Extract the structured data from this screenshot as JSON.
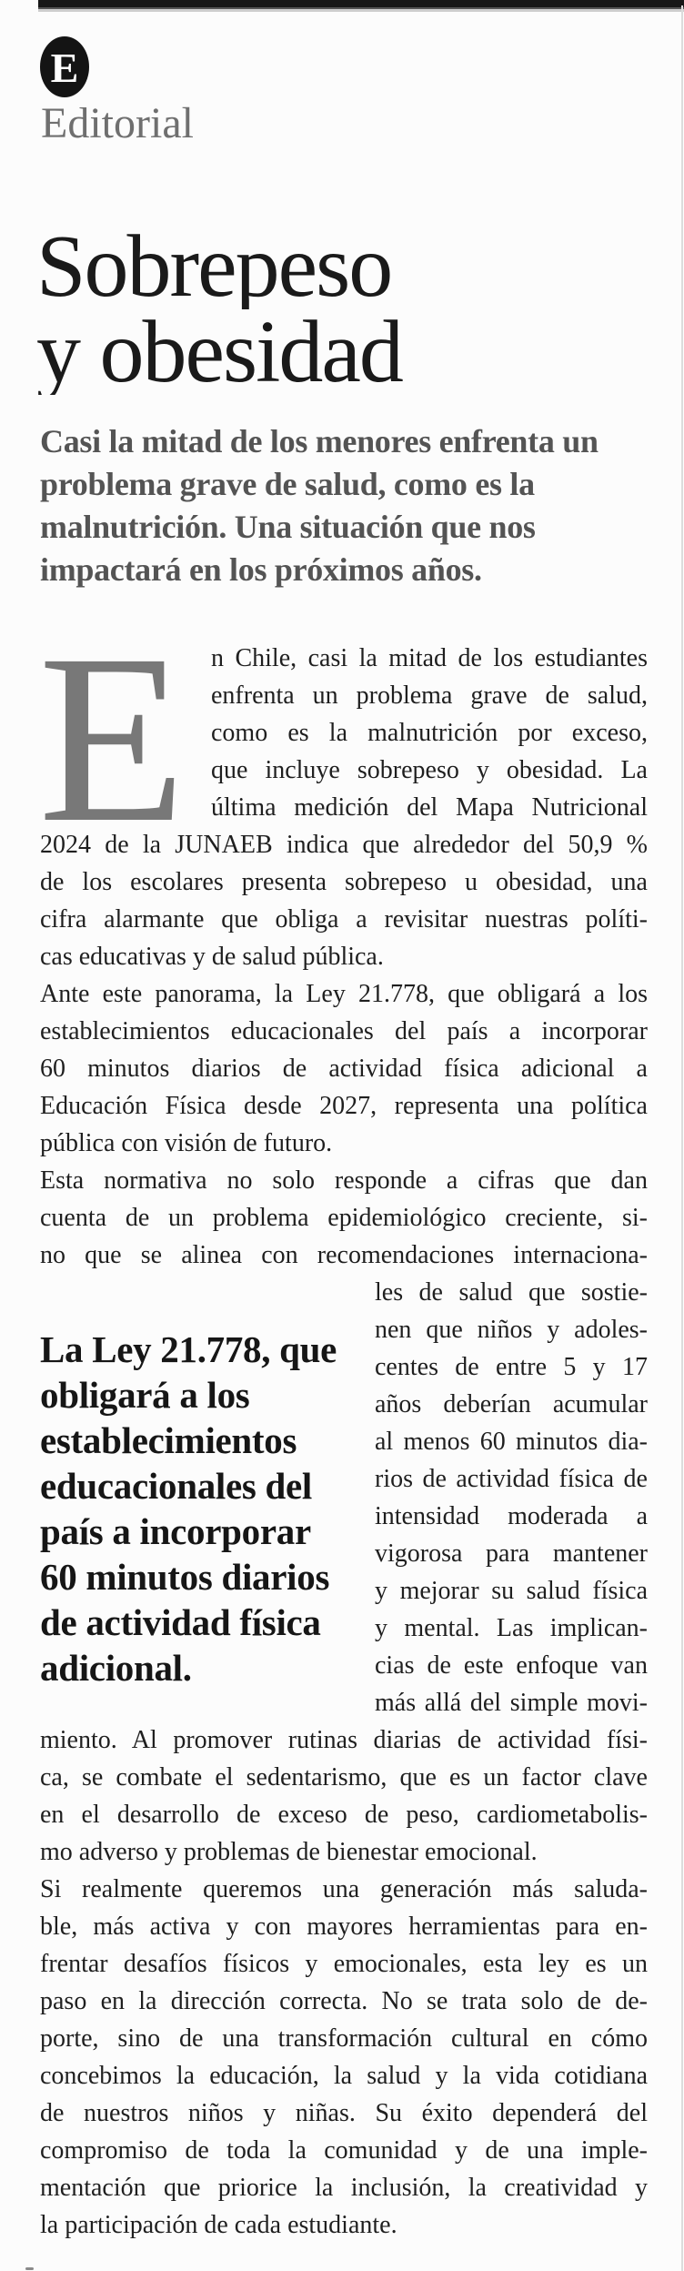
{
  "masthead": {
    "logo_letter": "E",
    "section_label": "Editorial"
  },
  "article": {
    "title_lines": [
      "Sobrepeso",
      "y obesidad"
    ],
    "lede_lines": [
      "Casi la mitad de los menores enfrenta un",
      "problema grave de salud, como es la",
      "malnutrición. Una situación que nos",
      "impactará en los próximos años."
    ],
    "dropcap_letter": "E",
    "body": {
      "indent": [
        "n Chile, casi la mitad de los estudiantes",
        "enfrenta un problema grave de salud,",
        "como es la malnutrición por exceso,",
        "que incluye sobrepeso y obesidad. La",
        "última medición del Mapa Nutricional"
      ],
      "full1_a": [
        "2024 de la JUNAEB indica que alrededor del 50,9 %",
        "de los escolares presenta sobrepeso u obesidad, una",
        "cifra alarmante que obliga a revisitar nuestras políti-",
        "cas educativas y de salud pública."
      ],
      "full1_b": [
        "Ante este panorama, la Ley 21.778, que obligará a los",
        "establecimientos educacionales del país a incorporar",
        "60 minutos diarios de actividad física adicional a",
        "Educación Física desde 2027, representa una política",
        "pública con visión de futuro."
      ],
      "full1_c": [
        "Esta normativa no solo responde a cifras que dan",
        "cuenta de un problema epidemiológico creciente, si-",
        "no que se alinea con recomendaciones internaciona-"
      ],
      "right_col": [
        "les de salud que sostie-",
        "nen que niños y adoles-",
        "centes de entre 5 y 17",
        "años deberían acumular",
        "al menos 60 minutos dia-",
        "rios de actividad física de",
        "intensidad moderada a",
        "vigorosa para mantener",
        "y mejorar su salud física",
        "y mental. Las implican-",
        "cias de este enfoque van",
        "más allá del simple movi-"
      ],
      "full2_a": [
        "miento. Al promover rutinas diarias de actividad físi-",
        "ca, se combate el sedentarismo, que es un factor clave",
        "en el desarrollo de exceso de peso, cardiometabolis-",
        "mo adverso y problemas de bienestar emocional."
      ],
      "full2_b": [
        "Si realmente queremos una generación más saluda-",
        "ble, más activa y con mayores herramientas para en-",
        "frentar desafíos físicos y emocionales, esta ley es un",
        "paso en la dirección correcta. No se trata solo de de-",
        "porte, sino de una transformación cultural en cómo",
        "concebimos la educación, la salud y la vida cotidiana",
        "de nuestros niños y niñas. Su éxito dependerá del",
        "compromiso de toda la comunidad y de una imple-",
        "mentación que priorice la inclusión, la creatividad y",
        "la participación de cada estudiante."
      ]
    },
    "pull_quote_lines": [
      "La Ley 21.778, que",
      "obligará a los",
      "establecimientos",
      "educacionales del",
      "país a incorporar",
      "60 minutos diarios",
      "de actividad física",
      "adicional."
    ]
  },
  "colors": {
    "top_rule": "#171717",
    "logo_background": "#141414",
    "logo_letter": "#ffffff",
    "section_label_gray": "#6f6f6f",
    "headline_black": "#1a1a1a",
    "lede_gray": "#545454",
    "body_text": "#1f1f1f",
    "dropcap_gray": "#787878",
    "pull_quote_black": "#161616",
    "right_rule_gray": "#dcdcdc",
    "page_background": "#fcfcfc"
  }
}
